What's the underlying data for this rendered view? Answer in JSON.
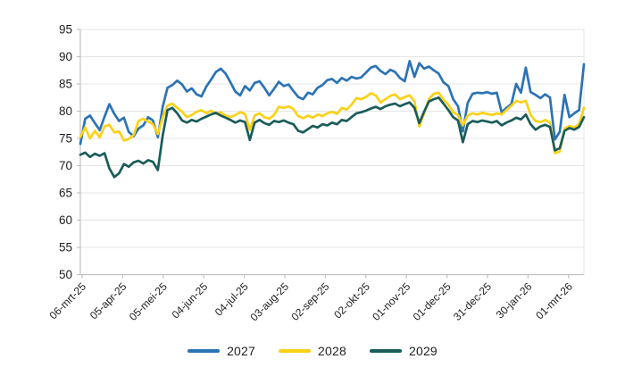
{
  "figure": {
    "background": "#ffffff",
    "axis_color": "#c0c0c0",
    "gridline_color": "#e4e4e4",
    "label_color": "#212121"
  },
  "chart_data": {
    "type": "line",
    "title": "",
    "xlabel": "",
    "ylabel": "",
    "grid": "horizontal",
    "legend_position": "bottom",
    "y_axis": {
      "min": 50,
      "max": 95,
      "step": 5,
      "ticks": [
        95,
        90,
        85,
        80,
        75,
        70,
        65,
        60,
        55,
        50
      ]
    },
    "x_axis": {
      "type": "date",
      "tick_labels": [
        "06-mrt-25",
        "05-apr-25",
        "05-mei-25",
        "04-jun-25",
        "04-jul-25",
        "03-aug-25",
        "02-sep-25",
        "02-okt-25",
        "01-nov-25",
        "01-dec-25",
        "31-dec-25",
        "30-jan-26",
        "01-mrt-26"
      ]
    },
    "series": [
      {
        "name": "2027",
        "color": "#2C73B5",
        "values": [
          74.0,
          78.6,
          79.2,
          77.8,
          76.5,
          79.0,
          81.3,
          79.5,
          78.2,
          78.8,
          76.2,
          75.4,
          76.8,
          77.4,
          78.9,
          78.3,
          75.2,
          80.8,
          84.3,
          84.8,
          85.6,
          84.9,
          83.6,
          84.2,
          83.1,
          82.7,
          84.5,
          85.8,
          87.2,
          87.8,
          86.9,
          85.3,
          83.6,
          82.9,
          84.6,
          83.8,
          85.2,
          85.5,
          84.3,
          82.9,
          84.1,
          85.4,
          84.6,
          84.9,
          83.7,
          82.6,
          82.2,
          83.4,
          83.1,
          84.3,
          84.8,
          85.7,
          85.9,
          85.2,
          86.1,
          85.6,
          86.3,
          86.0,
          86.2,
          87.1,
          88.0,
          88.3,
          87.4,
          86.8,
          87.6,
          87.2,
          86.1,
          85.5,
          89.2,
          86.3,
          88.8,
          87.8,
          88.2,
          87.5,
          86.9,
          85.3,
          84.6,
          82.2,
          80.9,
          76.3,
          81.5,
          83.2,
          83.4,
          83.3,
          83.5,
          83.2,
          83.4,
          79.8,
          80.6,
          81.3,
          85.0,
          83.4,
          88.0,
          83.5,
          83.0,
          82.4,
          83.1,
          82.5,
          74.8,
          76.2,
          83.0,
          78.9,
          79.6,
          80.2,
          88.6
        ]
      },
      {
        "name": "2028",
        "color": "#FBD117",
        "values": [
          75.3,
          77.0,
          75.0,
          76.4,
          75.2,
          77.2,
          77.5,
          76.1,
          76.3,
          74.6,
          74.9,
          75.6,
          78.2,
          78.6,
          78.1,
          77.6,
          75.8,
          78.9,
          81.0,
          81.4,
          80.6,
          79.9,
          78.9,
          79.3,
          79.9,
          80.2,
          79.6,
          80.1,
          79.5,
          79.8,
          79.2,
          78.9,
          79.3,
          79.8,
          79.5,
          76.6,
          79.2,
          79.6,
          78.9,
          78.6,
          79.3,
          80.8,
          80.6,
          80.9,
          80.4,
          79.1,
          78.7,
          79.2,
          78.8,
          79.4,
          79.1,
          79.6,
          79.9,
          79.5,
          80.6,
          80.3,
          81.2,
          82.4,
          82.2,
          82.6,
          83.3,
          82.9,
          81.6,
          82.2,
          82.8,
          83.1,
          82.2,
          82.6,
          82.9,
          81.8,
          77.2,
          79.6,
          82.3,
          83.2,
          83.4,
          82.1,
          81.2,
          79.8,
          79.3,
          77.4,
          79.2,
          79.6,
          79.4,
          79.7,
          79.5,
          79.3,
          79.6,
          79.4,
          80.2,
          81.0,
          81.9,
          81.6,
          81.9,
          79.3,
          78.2,
          78.0,
          78.4,
          77.9,
          72.3,
          72.6,
          76.8,
          77.3,
          77.0,
          77.6,
          80.6
        ]
      },
      {
        "name": "2029",
        "color": "#1A5C5A",
        "values": [
          72.0,
          72.4,
          71.6,
          72.2,
          71.8,
          72.3,
          69.5,
          67.9,
          68.6,
          70.3,
          69.8,
          70.6,
          70.9,
          70.4,
          71.0,
          70.7,
          69.2,
          75.5,
          80.2,
          80.6,
          79.6,
          78.3,
          77.9,
          78.4,
          78.1,
          78.6,
          79.0,
          79.4,
          79.7,
          79.2,
          78.8,
          78.4,
          77.9,
          78.3,
          78.0,
          74.7,
          77.9,
          78.4,
          77.8,
          77.5,
          78.2,
          78.0,
          78.3,
          77.9,
          77.6,
          76.4,
          76.1,
          76.7,
          77.3,
          77.0,
          77.6,
          77.4,
          77.9,
          77.6,
          78.4,
          78.2,
          78.9,
          79.6,
          79.8,
          80.1,
          80.5,
          80.8,
          80.4,
          80.9,
          81.2,
          81.4,
          80.9,
          81.3,
          81.6,
          80.6,
          77.8,
          79.9,
          81.8,
          82.2,
          82.5,
          81.4,
          80.2,
          78.9,
          78.3,
          74.3,
          77.6,
          78.2,
          78.0,
          78.3,
          78.1,
          77.9,
          78.2,
          77.4,
          77.9,
          78.3,
          78.8,
          78.5,
          79.4,
          77.6,
          76.6,
          77.2,
          77.5,
          77.1,
          72.8,
          73.2,
          76.4,
          76.9,
          76.6,
          77.1,
          78.9
        ]
      }
    ]
  }
}
